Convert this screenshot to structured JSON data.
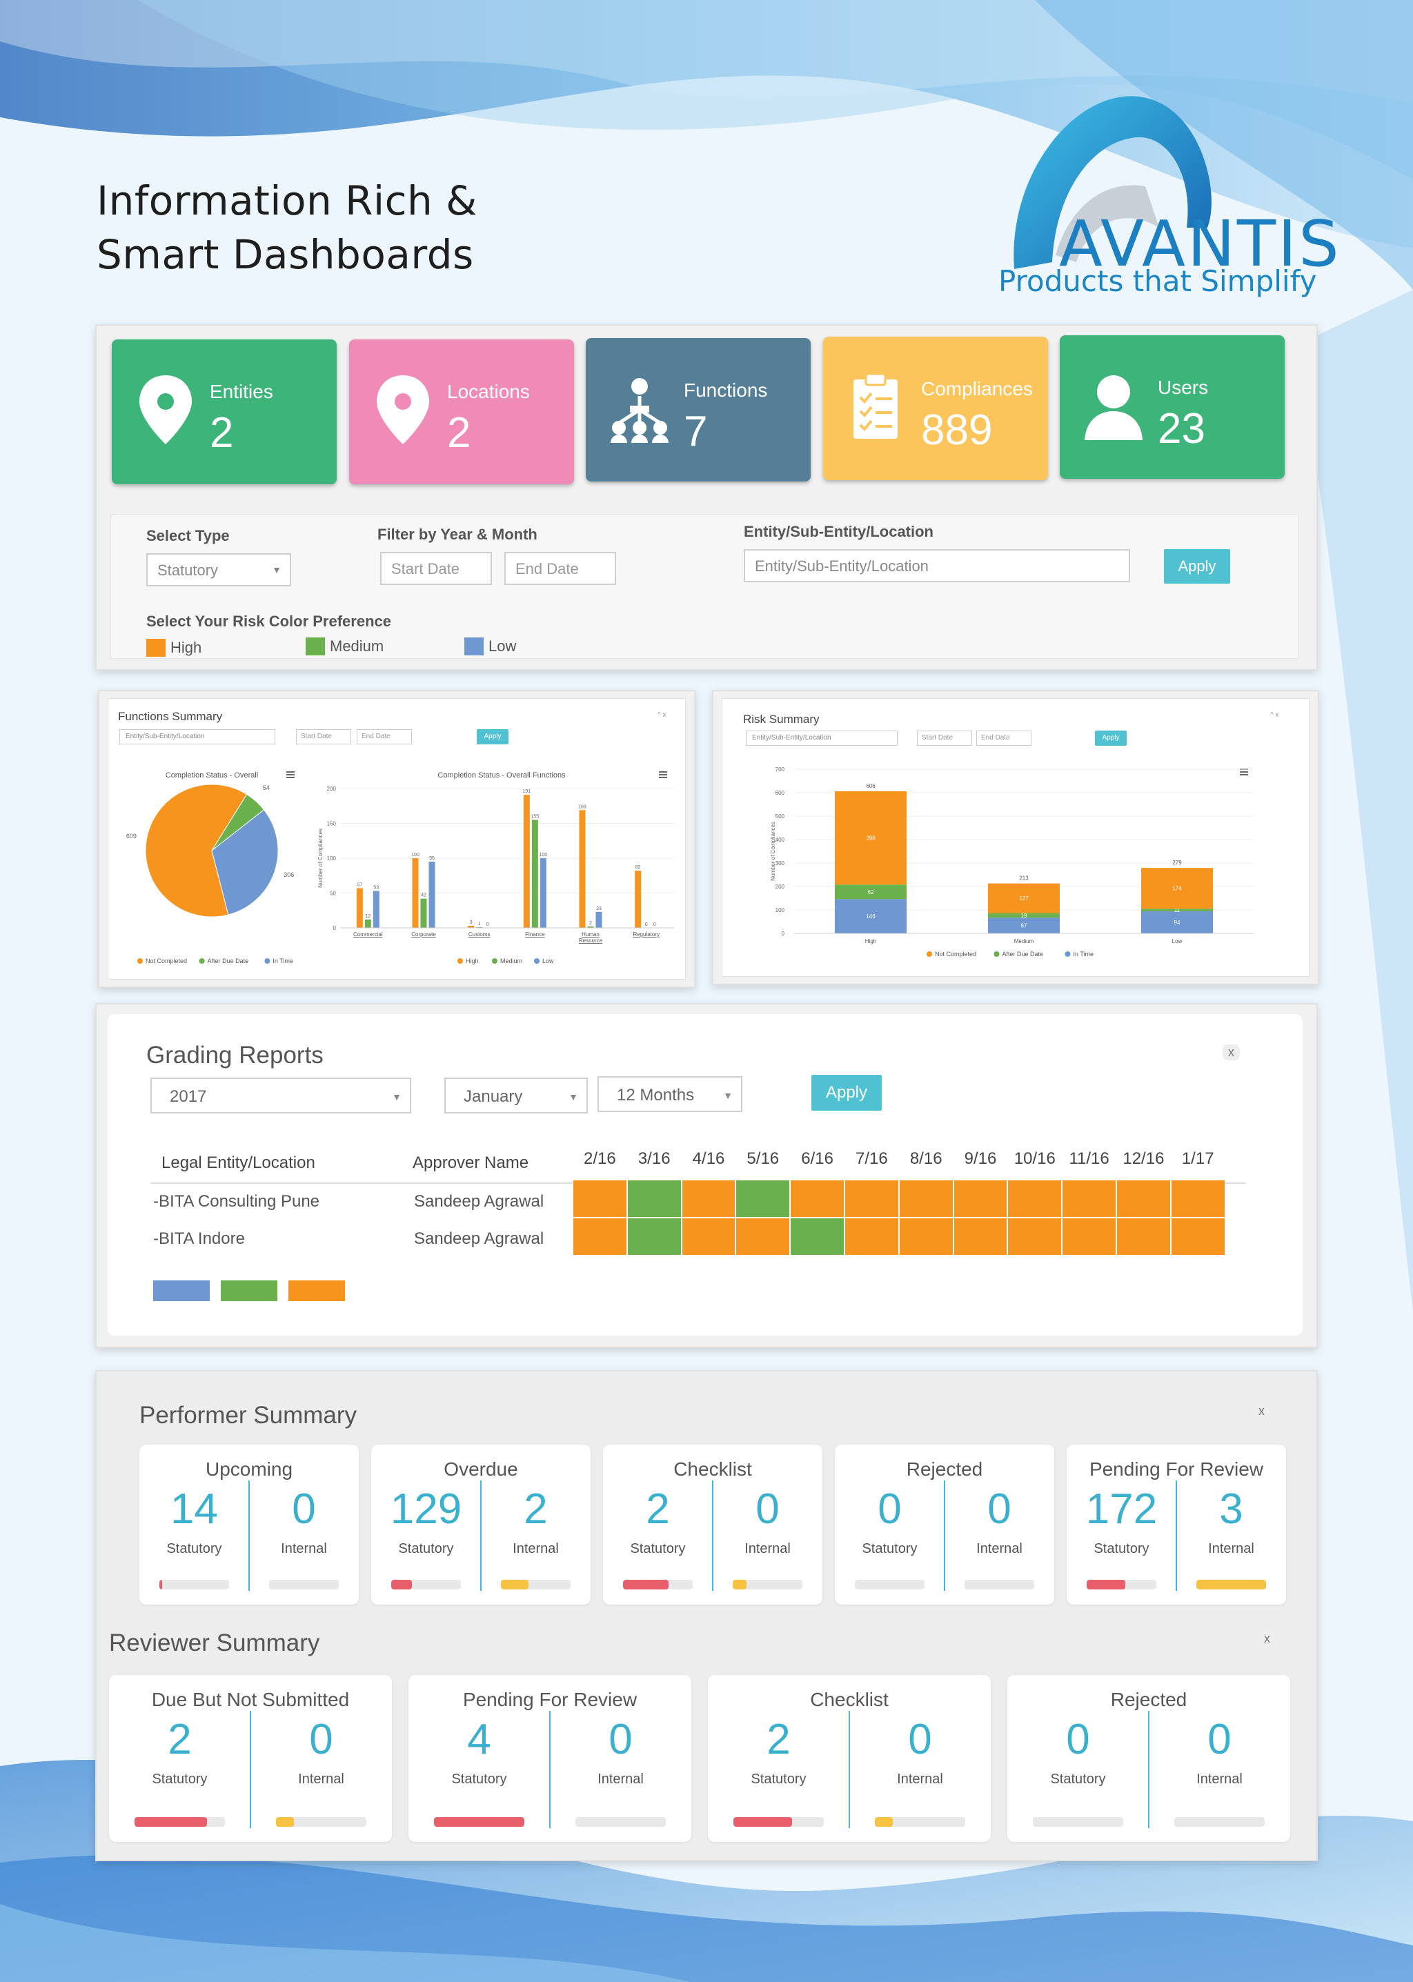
{
  "headline": {
    "line1": "Information Rich &",
    "line2": "Smart Dashboards"
  },
  "brand": {
    "name": "AVANTIS",
    "tagline": "Products that Simplify"
  },
  "tiles": [
    {
      "label": "Entities",
      "value": "2",
      "color": "#3db57a",
      "icon": "location-pin-icon"
    },
    {
      "label": "Locations",
      "value": "2",
      "color": "#f08bb8",
      "icon": "location-pin-icon"
    },
    {
      "label": "Functions",
      "value": "7",
      "color": "#557f97",
      "icon": "hierarchy-icon"
    },
    {
      "label": "Compliances",
      "value": "889",
      "color": "#fbc55c",
      "icon": "clipboard-icon"
    },
    {
      "label": "Users",
      "value": "23",
      "color": "#3db57a",
      "icon": "user-icon"
    }
  ],
  "filters": {
    "select_type_label": "Select Type",
    "select_type_value": "Statutory",
    "date_filter_label": "Filter by Year & Month",
    "start_placeholder": "Start Date",
    "end_placeholder": "End Date",
    "entity_label": "Entity/Sub-Entity/Location",
    "entity_placeholder": "Entity/Sub-Entity/Location",
    "apply": "Apply",
    "risk_pref_label": "Select Your Risk Color Preference",
    "risk": [
      {
        "label": "High",
        "color": "#f7941d"
      },
      {
        "label": "Medium",
        "color": "#6ab04c"
      },
      {
        "label": "Low",
        "color": "#6f97d1"
      }
    ]
  },
  "functions_summary": {
    "title": "Functions Summary",
    "entity_placeholder": "Entity/Sub-Entity/Location",
    "start_placeholder": "Start Date",
    "end_placeholder": "End Date",
    "apply": "Apply"
  },
  "risk_summary": {
    "title": "Risk Summary",
    "entity_placeholder": "Entity/Sub-Entity/Location",
    "start_placeholder": "Start Date",
    "end_placeholder": "End Date",
    "apply": "Apply"
  },
  "chart_data": [
    {
      "type": "pie",
      "title": "Completion Status - Overall",
      "labels": [
        "Not Completed",
        "After Due Date",
        "In Time"
      ],
      "values": [
        609,
        54,
        306
      ],
      "colors": [
        "#f7941d",
        "#6ab04c",
        "#6f97d1"
      ]
    },
    {
      "type": "bar",
      "title": "Completion Status - Overall Functions",
      "ylabel": "Number of Compliances",
      "ylim": [
        0,
        200
      ],
      "yticks": [
        0,
        50,
        100,
        150,
        200
      ],
      "categories": [
        "Commercial",
        "Corporate",
        "Customs",
        "Finance",
        "Human Resource",
        "Regulatory"
      ],
      "series": [
        {
          "name": "High",
          "color": "#f7941d",
          "values": [
            57,
            100,
            3,
            191,
            169,
            82
          ]
        },
        {
          "name": "Medium",
          "color": "#6ab04c",
          "values": [
            12,
            42,
            1,
            155,
            2,
            0
          ]
        },
        {
          "name": "Low",
          "color": "#6f97d1",
          "values": [
            53,
            95,
            0,
            100,
            23,
            0
          ]
        }
      ]
    },
    {
      "type": "bar",
      "stacked": true,
      "ylabel": "Number of Compliances",
      "ylim": [
        0,
        700
      ],
      "yticks": [
        0,
        100,
        200,
        300,
        400,
        500,
        600,
        700
      ],
      "categories": [
        "High",
        "Medium",
        "Low"
      ],
      "totals": [
        606,
        213,
        279
      ],
      "series": [
        {
          "name": "In Time",
          "color": "#6f97d1",
          "values": [
            146,
            67,
            94
          ]
        },
        {
          "name": "After Due Date",
          "color": "#6ab04c",
          "values": [
            62,
            19,
            11
          ]
        },
        {
          "name": "Not Completed",
          "color": "#f7941d",
          "values": [
            398,
            127,
            174
          ]
        }
      ]
    }
  ],
  "grading": {
    "title": "Grading Reports",
    "year": "2017",
    "month": "January",
    "period": "12 Months",
    "apply": "Apply",
    "col_entity": "Legal Entity/Location",
    "col_approver": "Approver Name",
    "months": [
      "2/16",
      "3/16",
      "4/16",
      "5/16",
      "6/16",
      "7/16",
      "8/16",
      "9/16",
      "10/16",
      "11/16",
      "12/16",
      "1/17"
    ],
    "rows": [
      {
        "entity": "-BITA Consulting Pune",
        "approver": "Sandeep Agrawal",
        "grades": [
          "high",
          "medium",
          "high",
          "medium",
          "high",
          "high",
          "high",
          "high",
          "high",
          "high",
          "high",
          "high"
        ]
      },
      {
        "entity": "-BITA Indore",
        "approver": "Sandeep Agrawal",
        "grades": [
          "high",
          "medium",
          "high",
          "high",
          "medium",
          "high",
          "high",
          "high",
          "high",
          "high",
          "high",
          "high"
        ]
      }
    ],
    "legend_colors": [
      "#6f97d1",
      "#6ab04c",
      "#f7941d"
    ]
  },
  "performer": {
    "title": "Performer Summary",
    "cards": [
      {
        "title": "Upcoming",
        "statutory": "14",
        "internal": "0",
        "stat_fill": 0.02,
        "int_fill": 0,
        "stat_color": "#e85e6a",
        "int_color": "#f5c242"
      },
      {
        "title": "Overdue",
        "statutory": "129",
        "internal": "2",
        "stat_fill": 0.3,
        "int_fill": 0.4,
        "stat_color": "#e85e6a",
        "int_color": "#f5c242"
      },
      {
        "title": "Checklist",
        "statutory": "2",
        "internal": "0",
        "stat_fill": 0.65,
        "int_fill": 0.2,
        "stat_color": "#e85e6a",
        "int_color": "#f5c242"
      },
      {
        "title": "Rejected",
        "statutory": "0",
        "internal": "0",
        "stat_fill": 0,
        "int_fill": 0,
        "stat_color": "#e85e6a",
        "int_color": "#f5c242"
      },
      {
        "title": "Pending For Review",
        "statutory": "172",
        "internal": "3",
        "stat_fill": 0.55,
        "int_fill": 1.0,
        "stat_color": "#e85e6a",
        "int_color": "#f5c242"
      }
    ]
  },
  "reviewer": {
    "title": "Reviewer Summary",
    "cards": [
      {
        "title": "Due But Not Submitted",
        "statutory": "2",
        "internal": "0",
        "stat_fill": 0.8,
        "int_fill": 0.2,
        "stat_color": "#e85e6a",
        "int_color": "#f5c242"
      },
      {
        "title": "Pending For Review",
        "statutory": "4",
        "internal": "0",
        "stat_fill": 1.0,
        "int_fill": 0,
        "stat_color": "#e85e6a",
        "int_color": "#f5c242"
      },
      {
        "title": "Checklist",
        "statutory": "2",
        "internal": "0",
        "stat_fill": 0.65,
        "int_fill": 0.2,
        "stat_color": "#e85e6a",
        "int_color": "#f5c242"
      },
      {
        "title": "Rejected",
        "statutory": "0",
        "internal": "0",
        "stat_fill": 0,
        "int_fill": 0,
        "stat_color": "#e85e6a",
        "int_color": "#f5c242"
      }
    ],
    "statutory_label": "Statutory",
    "internal_label": "Internal"
  },
  "grade_colors": {
    "high": "#f7941d",
    "medium": "#6ab04c",
    "low": "#6f97d1"
  }
}
